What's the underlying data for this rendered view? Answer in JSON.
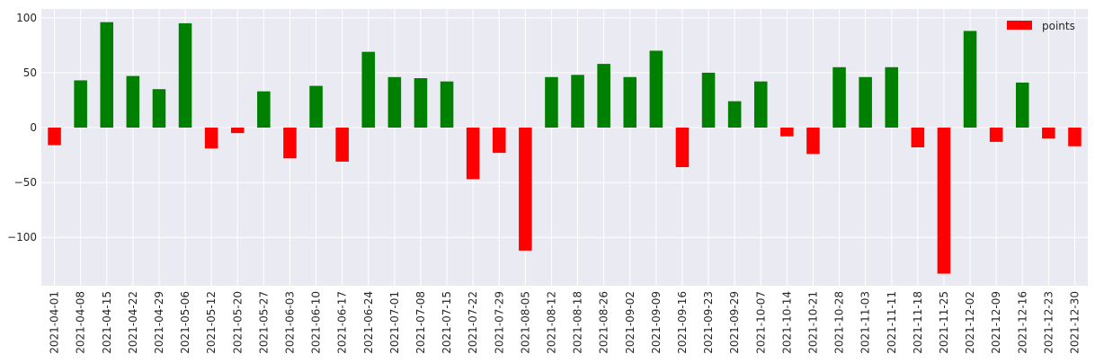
{
  "chart_data": {
    "type": "bar",
    "categories": [
      "2021-04-01",
      "2021-04-08",
      "2021-04-15",
      "2021-04-22",
      "2021-04-29",
      "2021-05-06",
      "2021-05-12",
      "2021-05-20",
      "2021-05-27",
      "2021-06-03",
      "2021-06-10",
      "2021-06-17",
      "2021-06-24",
      "2021-07-01",
      "2021-07-08",
      "2021-07-15",
      "2021-07-22",
      "2021-07-29",
      "2021-08-05",
      "2021-08-12",
      "2021-08-18",
      "2021-08-26",
      "2021-09-02",
      "2021-09-09",
      "2021-09-16",
      "2021-09-23",
      "2021-09-29",
      "2021-10-07",
      "2021-10-14",
      "2021-10-21",
      "2021-10-28",
      "2021-11-03",
      "2021-11-11",
      "2021-11-18",
      "2021-11-25",
      "2021-12-02",
      "2021-12-09",
      "2021-12-16",
      "2021-12-23",
      "2021-12-30"
    ],
    "series": [
      {
        "name": "points",
        "values": [
          -16,
          43,
          96,
          47,
          35,
          95,
          -19,
          -5,
          33,
          -28,
          38,
          -31,
          69,
          46,
          45,
          42,
          -47,
          -23,
          -112,
          46,
          48,
          58,
          46,
          70,
          -36,
          50,
          24,
          42,
          -8,
          -24,
          55,
          46,
          55,
          -18,
          -133,
          88,
          -13,
          41,
          -10,
          -17
        ]
      }
    ],
    "colors": {
      "positive": "#008000",
      "negative": "#ff0000",
      "legend": "#ff0000"
    },
    "xlabel": "",
    "ylabel": "",
    "ylim": [
      -144,
      108
    ],
    "yticks": [
      100,
      50,
      0,
      -50,
      -100
    ],
    "grid": true,
    "legend_position": "top-right",
    "style": {
      "background": "#eaeaf2",
      "grid_color": "#ffffff"
    }
  }
}
